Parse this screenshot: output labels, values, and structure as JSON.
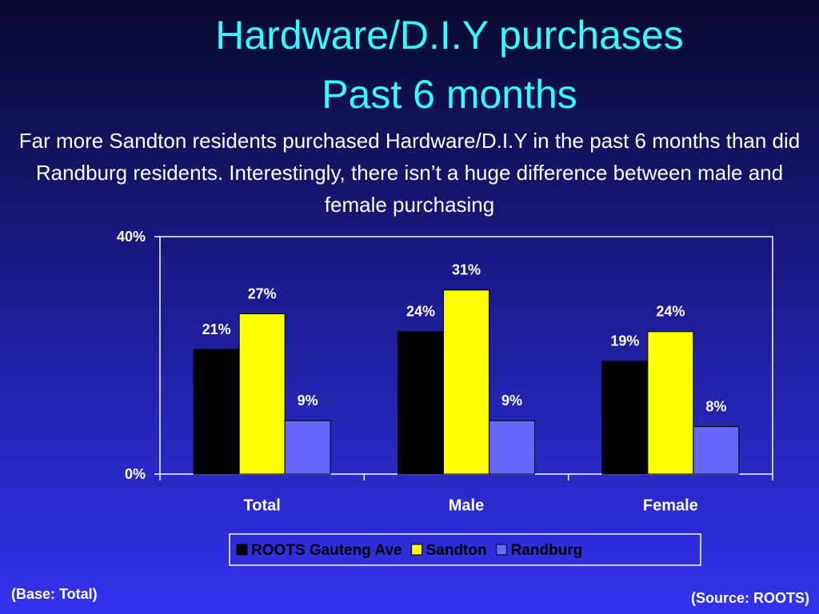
{
  "chart_data": {
    "type": "bar",
    "title": "Hardware/D.I.Y purchases",
    "subtitle": "Past 6 months",
    "description": "Far more Sandton residents purchased Hardware/D.I.Y in the past 6 months than did Randburg residents.  Interestingly, there isn’t a huge difference between male and female purchasing",
    "categories": [
      "Total",
      "Male",
      "Female"
    ],
    "series": [
      {
        "name": "ROOTS Gauteng Ave",
        "color": "#000000",
        "values": [
          21,
          24,
          19
        ],
        "value_labels": [
          "21%",
          "24%",
          "19%"
        ]
      },
      {
        "name": "Sandton",
        "color": "#ffff00",
        "values": [
          27,
          31,
          24
        ],
        "value_labels": [
          "27%",
          "31%",
          "24%"
        ]
      },
      {
        "name": "Randburg",
        "color": "#6666ff",
        "values": [
          9,
          9,
          8
        ],
        "value_labels": [
          "9%",
          "9%",
          "8%"
        ]
      }
    ],
    "ylim": [
      0,
      40
    ],
    "yticks": [
      {
        "value": 0,
        "label": "0%"
      },
      {
        "value": 40,
        "label": "40%"
      }
    ],
    "legend": "bottom",
    "annotations": [
      "(Base: Total)",
      "(Source: ROOTS)"
    ]
  }
}
